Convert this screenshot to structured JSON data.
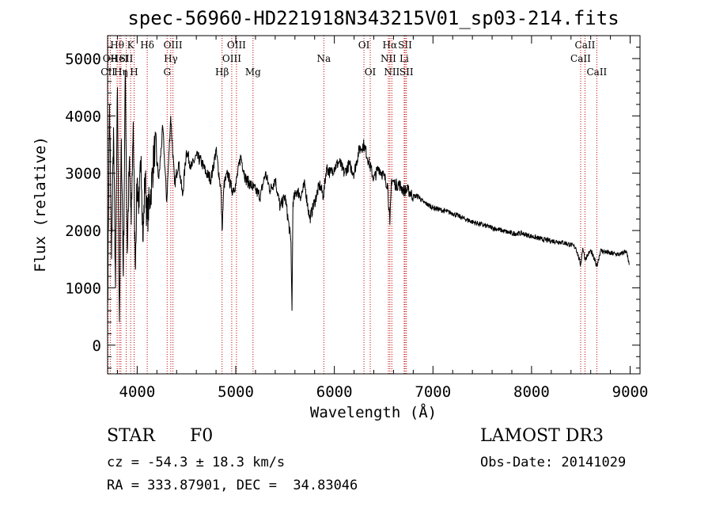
{
  "chart_data": {
    "type": "line",
    "title": "spec-56960-HD221918N343215V01_sp03-214.fits",
    "xlabel": "Wavelength (Å)",
    "ylabel": "Flux (relative)",
    "xlim": [
      3700,
      9100
    ],
    "ylim": [
      -500,
      5400
    ],
    "xticks": [
      4000,
      5000,
      6000,
      7000,
      8000,
      9000
    ],
    "yticks": [
      0,
      1000,
      2000,
      3000,
      4000,
      5000
    ],
    "series": [
      {
        "name": "flux",
        "x": [
          3700,
          3720,
          3740,
          3760,
          3780,
          3800,
          3820,
          3840,
          3860,
          3880,
          3900,
          3920,
          3940,
          3960,
          3980,
          4000,
          4020,
          4040,
          4060,
          4080,
          4100,
          4140,
          4180,
          4220,
          4260,
          4300,
          4340,
          4380,
          4420,
          4460,
          4500,
          4550,
          4600,
          4650,
          4700,
          4750,
          4800,
          4850,
          4861,
          4880,
          4920,
          4960,
          5000,
          5050,
          5100,
          5150,
          5200,
          5250,
          5300,
          5350,
          5400,
          5450,
          5500,
          5560,
          5570,
          5580,
          5620,
          5660,
          5700,
          5750,
          5800,
          5850,
          5890,
          5920,
          5960,
          6000,
          6050,
          6100,
          6150,
          6200,
          6250,
          6300,
          6350,
          6400,
          6450,
          6500,
          6540,
          6563,
          6580,
          6620,
          6660,
          6700,
          6750,
          6800,
          6850,
          6900,
          6950,
          7000,
          7100,
          7200,
          7300,
          7400,
          7500,
          7600,
          7700,
          7800,
          7900,
          8000,
          8100,
          8200,
          8300,
          8400,
          8450,
          8498,
          8520,
          8542,
          8600,
          8662,
          8700,
          8800,
          8900,
          8960,
          8990
        ],
        "y": [
          700,
          4200,
          1500,
          3800,
          1000,
          4500,
          400,
          3600,
          1200,
          4800,
          1600,
          3200,
          2100,
          3900,
          1400,
          2900,
          2400,
          3300,
          1800,
          3000,
          2200,
          2700,
          3500,
          2900,
          3800,
          2500,
          4000,
          2800,
          3200,
          2600,
          3400,
          3100,
          3300,
          3200,
          3000,
          2900,
          3400,
          2700,
          2000,
          2800,
          3000,
          2700,
          2800,
          3300,
          2900,
          2800,
          2700,
          2600,
          3000,
          2700,
          2900,
          2400,
          2600,
          1800,
          600,
          2500,
          2700,
          2600,
          2800,
          2200,
          2500,
          2800,
          2600,
          3100,
          3000,
          3100,
          3200,
          3000,
          3150,
          3000,
          3400,
          3500,
          3200,
          2900,
          3100,
          2950,
          2800,
          2100,
          2900,
          2800,
          2800,
          2700,
          2700,
          2600,
          2600,
          2500,
          2450,
          2400,
          2350,
          2300,
          2220,
          2150,
          2100,
          2050,
          2000,
          1950,
          1950,
          1900,
          1850,
          1820,
          1800,
          1750,
          1700,
          1400,
          1700,
          1500,
          1650,
          1380,
          1650,
          1600,
          1580,
          1650,
          1400
        ]
      }
    ],
    "spectral_lines": [
      {
        "label": "Hθ",
        "wavelength": 3797,
        "row": 1
      },
      {
        "label": "OII",
        "wavelength": 3727,
        "row": 2
      },
      {
        "label": "HeI",
        "wavelength": 3820,
        "row": 2
      },
      {
        "label": "Hη",
        "wavelength": 3835,
        "row": 3
      },
      {
        "label": "CII",
        "wavelength": 3705,
        "row": 3
      },
      {
        "label": "K",
        "wavelength": 3934,
        "row": 1
      },
      {
        "label": "SII",
        "wavelength": 3889,
        "row": 2
      },
      {
        "label": "H",
        "wavelength": 3969,
        "row": 3
      },
      {
        "label": "Hδ",
        "wavelength": 4102,
        "row": 1
      },
      {
        "label": "OIII",
        "wavelength": 4363,
        "row": 1
      },
      {
        "label": "Hγ",
        "wavelength": 4341,
        "row": 2
      },
      {
        "label": "G",
        "wavelength": 4304,
        "row": 3
      },
      {
        "label": "Hβ",
        "wavelength": 4861,
        "row": 3
      },
      {
        "label": "OIII",
        "wavelength": 5007,
        "row": 1
      },
      {
        "label": "OIII",
        "wavelength": 4959,
        "row": 2
      },
      {
        "label": "Mg",
        "wavelength": 5175,
        "row": 3
      },
      {
        "label": "Na",
        "wavelength": 5893,
        "row": 2
      },
      {
        "label": "OI",
        "wavelength": 6300,
        "row": 1
      },
      {
        "label": "OI",
        "wavelength": 6364,
        "row": 3
      },
      {
        "label": "Hα",
        "wavelength": 6563,
        "row": 1
      },
      {
        "label": "NII",
        "wavelength": 6548,
        "row": 2
      },
      {
        "label": "NII",
        "wavelength": 6583,
        "row": 3
      },
      {
        "label": "SII",
        "wavelength": 6717,
        "row": 1
      },
      {
        "label": "Li",
        "wavelength": 6708,
        "row": 2
      },
      {
        "label": "SII",
        "wavelength": 6731,
        "row": 3
      },
      {
        "label": "CaII",
        "wavelength": 8542,
        "row": 1
      },
      {
        "label": "CaII",
        "wavelength": 8498,
        "row": 2
      },
      {
        "label": "CaII",
        "wavelength": 8662,
        "row": 3
      }
    ]
  },
  "info": {
    "class": "STAR",
    "subclass": "F0",
    "survey": "LAMOST DR3",
    "cz": "cz = -54.3 ± 18.3 km/s",
    "obs_date": "Obs-Date: 20141029",
    "radec": "RA = 333.87901, DEC =  34.83046"
  }
}
